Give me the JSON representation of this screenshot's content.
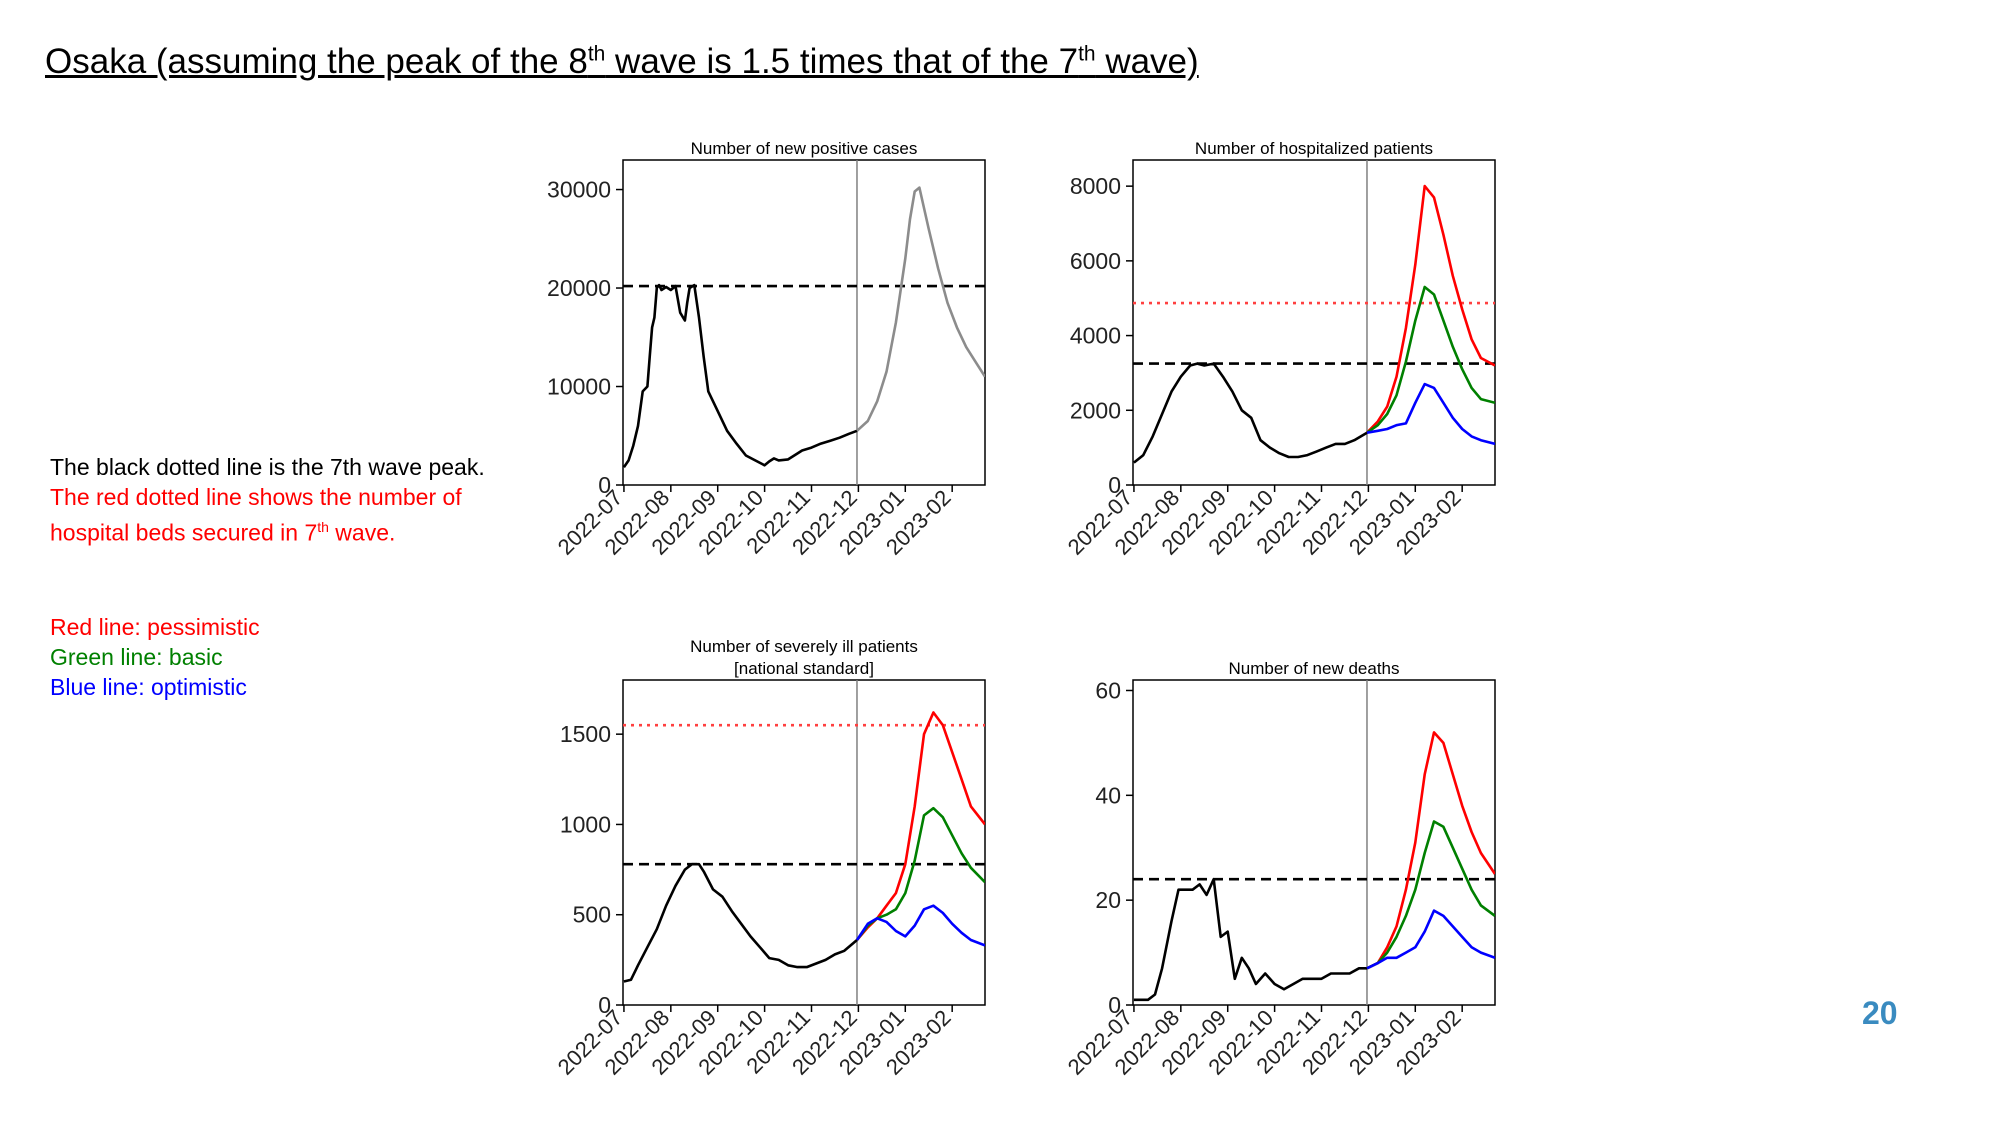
{
  "slide": {
    "title_pre": "Osaka (assuming the peak of the 8",
    "title_sup1": "th",
    "title_mid": " wave is 1.5 times that of the 7",
    "title_sup2": "th",
    "title_post": " wave)",
    "page_number": "20"
  },
  "notes": {
    "black_line": "The black dotted line is the 7th wave peak.",
    "red_line_1": "The red dotted line shows the number of",
    "red_line_2_pre": "hospital beds secured in 7",
    "red_line_2_sup": "th",
    "red_line_2_post": " wave.",
    "legend_red": "Red line: pessimistic",
    "legend_green": "Green line: basic",
    "legend_blue": "Blue line: optimistic"
  },
  "colors": {
    "actual": "#000000",
    "projection": "#8c8c8c",
    "pessimistic": "#ff0000",
    "basic": "#008000",
    "optimistic": "#0000ff",
    "peak_ref": "#000000",
    "beds_ref": "#ff4040",
    "page_number": "#3a8bc0"
  },
  "chart_data": [
    {
      "type": "line",
      "title": [
        "Number of new positive cases"
      ],
      "xticks": [
        "2022-07",
        "2022-08",
        "2022-09",
        "2022-10",
        "2022-11",
        "2022-12",
        "2023-01",
        "2023-02"
      ],
      "xlim": [
        -0.02,
        7.7
      ],
      "ylim": [
        0,
        33000
      ],
      "yticks": [
        0,
        10000,
        20000,
        30000
      ],
      "ylabels": [
        "0",
        "10000",
        "20000",
        "30000"
      ],
      "vline_x": 4.97,
      "hlines": [
        {
          "y": 20200,
          "style": "dashed",
          "color_key": "peak_ref"
        }
      ],
      "series": [
        {
          "color_key": "actual",
          "x": [
            0,
            0.1,
            0.2,
            0.3,
            0.4,
            0.5,
            0.55,
            0.6,
            0.65,
            0.7,
            0.75,
            0.8,
            0.9,
            1.0,
            1.1,
            1.2,
            1.3,
            1.35,
            1.4,
            1.5,
            1.6,
            1.7,
            1.8,
            2.0,
            2.2,
            2.4,
            2.6,
            2.8,
            3.0,
            3.1,
            3.2,
            3.3,
            3.5,
            3.7,
            3.8,
            4.0,
            4.2,
            4.4,
            4.6,
            4.8,
            4.97
          ],
          "y": [
            1800,
            2500,
            4000,
            6000,
            9500,
            10000,
            13000,
            16000,
            17000,
            20000,
            20300,
            19800,
            20100,
            19800,
            20200,
            17500,
            16700,
            18500,
            20000,
            20300,
            17000,
            13000,
            9500,
            7500,
            5500,
            4200,
            3000,
            2500,
            2000,
            2400,
            2700,
            2500,
            2600,
            3200,
            3500,
            3800,
            4200,
            4500,
            4800,
            5200,
            5500
          ]
        },
        {
          "color_key": "projection",
          "x": [
            4.97,
            5.2,
            5.4,
            5.6,
            5.8,
            6.0,
            6.1,
            6.2,
            6.3,
            6.5,
            6.7,
            6.9,
            7.1,
            7.3,
            7.5,
            7.7
          ],
          "y": [
            5500,
            6500,
            8500,
            11500,
            16500,
            23000,
            27000,
            29800,
            30200,
            26000,
            22000,
            18500,
            16000,
            14000,
            12500,
            11000
          ]
        }
      ],
      "value_labels": []
    },
    {
      "type": "line",
      "title": [
        "Number of hospitalized patients"
      ],
      "xticks": [
        "2022-07",
        "2022-08",
        "2022-09",
        "2022-10",
        "2022-11",
        "2022-12",
        "2023-01",
        "2023-02"
      ],
      "xlim": [
        -0.02,
        7.7
      ],
      "ylim": [
        0,
        8700
      ],
      "yticks": [
        0,
        2000,
        4000,
        6000,
        8000
      ],
      "ylabels": [
        "0",
        "2000",
        "4000",
        "6000",
        "8000"
      ],
      "vline_x": 4.97,
      "hlines": [
        {
          "y": 3250,
          "style": "dashed",
          "color_key": "peak_ref"
        },
        {
          "y": 4870,
          "style": "dotted",
          "color_key": "beds_ref"
        }
      ],
      "series": [
        {
          "color_key": "actual",
          "x": [
            0,
            0.2,
            0.4,
            0.6,
            0.8,
            1.0,
            1.2,
            1.35,
            1.5,
            1.7,
            1.9,
            2.1,
            2.3,
            2.5,
            2.7,
            2.9,
            3.1,
            3.3,
            3.5,
            3.7,
            3.9,
            4.1,
            4.3,
            4.5,
            4.7,
            4.97
          ],
          "y": [
            600,
            800,
            1300,
            1900,
            2500,
            2900,
            3200,
            3250,
            3200,
            3250,
            2900,
            2500,
            2000,
            1800,
            1200,
            1000,
            850,
            750,
            750,
            800,
            900,
            1000,
            1100,
            1100,
            1200,
            1400
          ]
        },
        {
          "color_key": "pessimistic",
          "x": [
            4.97,
            5.2,
            5.4,
            5.6,
            5.8,
            6.0,
            6.2,
            6.4,
            6.6,
            6.8,
            7.0,
            7.2,
            7.4,
            7.7
          ],
          "y": [
            1400,
            1700,
            2100,
            2900,
            4200,
            5900,
            8000,
            7700,
            6700,
            5600,
            4700,
            3900,
            3400,
            3200
          ]
        },
        {
          "color_key": "basic",
          "x": [
            4.97,
            5.2,
            5.4,
            5.6,
            5.8,
            6.0,
            6.2,
            6.4,
            6.6,
            6.8,
            7.0,
            7.2,
            7.4,
            7.7
          ],
          "y": [
            1400,
            1600,
            1900,
            2400,
            3300,
            4400,
            5300,
            5100,
            4400,
            3700,
            3100,
            2600,
            2300,
            2200
          ]
        },
        {
          "color_key": "optimistic",
          "x": [
            4.97,
            5.2,
            5.4,
            5.6,
            5.8,
            6.0,
            6.2,
            6.4,
            6.6,
            6.8,
            7.0,
            7.2,
            7.4,
            7.7
          ],
          "y": [
            1400,
            1450,
            1500,
            1600,
            1650,
            2200,
            2700,
            2600,
            2200,
            1800,
            1500,
            1300,
            1200,
            1100
          ]
        }
      ],
      "value_labels": []
    },
    {
      "type": "line",
      "title": [
        "Number of severely ill patients",
        "[national standard]"
      ],
      "xticks": [
        "2022-07",
        "2022-08",
        "2022-09",
        "2022-10",
        "2022-11",
        "2022-12",
        "2023-01",
        "2023-02"
      ],
      "xlim": [
        -0.02,
        7.7
      ],
      "ylim": [
        0,
        1800
      ],
      "yticks": [
        0,
        500,
        1000,
        1500
      ],
      "ylabels": [
        "0",
        "500",
        "1000",
        "1500"
      ],
      "vline_x": 4.97,
      "hlines": [
        {
          "y": 780,
          "style": "dashed",
          "color_key": "peak_ref"
        },
        {
          "y": 1550,
          "style": "dotted",
          "color_key": "beds_ref"
        }
      ],
      "series": [
        {
          "color_key": "actual",
          "x": [
            0,
            0.15,
            0.3,
            0.5,
            0.7,
            0.9,
            1.1,
            1.3,
            1.45,
            1.6,
            1.7,
            1.9,
            2.1,
            2.3,
            2.5,
            2.7,
            2.9,
            3.1,
            3.3,
            3.5,
            3.7,
            3.9,
            4.1,
            4.3,
            4.5,
            4.7,
            4.97
          ],
          "y": [
            130,
            140,
            220,
            320,
            420,
            550,
            660,
            750,
            780,
            780,
            740,
            640,
            600,
            520,
            450,
            380,
            320,
            260,
            250,
            220,
            210,
            210,
            230,
            250,
            280,
            300,
            360
          ]
        },
        {
          "color_key": "pessimistic",
          "x": [
            4.97,
            5.2,
            5.4,
            5.6,
            5.8,
            6.0,
            6.2,
            6.4,
            6.6,
            6.8,
            7.0,
            7.2,
            7.4,
            7.7
          ],
          "y": [
            360,
            430,
            480,
            550,
            620,
            780,
            1100,
            1500,
            1620,
            1550,
            1400,
            1250,
            1100,
            1000
          ]
        },
        {
          "color_key": "basic",
          "x": [
            4.97,
            5.2,
            5.4,
            5.6,
            5.8,
            6.0,
            6.2,
            6.4,
            6.6,
            6.8,
            7.0,
            7.2,
            7.4,
            7.7
          ],
          "y": [
            360,
            440,
            480,
            500,
            530,
            620,
            800,
            1050,
            1090,
            1040,
            940,
            840,
            760,
            680
          ]
        },
        {
          "color_key": "optimistic",
          "x": [
            4.97,
            5.2,
            5.4,
            5.6,
            5.8,
            6.0,
            6.2,
            6.4,
            6.6,
            6.8,
            7.0,
            7.2,
            7.4,
            7.7
          ],
          "y": [
            360,
            450,
            480,
            460,
            410,
            380,
            440,
            530,
            550,
            510,
            450,
            400,
            360,
            330
          ]
        }
      ],
      "value_labels": []
    },
    {
      "type": "line",
      "title": [
        "Number of new deaths"
      ],
      "xticks": [
        "2022-07",
        "2022-08",
        "2022-09",
        "2022-10",
        "2022-11",
        "2022-12",
        "2023-01",
        "2023-02"
      ],
      "xlim": [
        -0.02,
        7.7
      ],
      "ylim": [
        0,
        62
      ],
      "yticks": [
        0,
        20,
        40,
        60
      ],
      "ylabels": [
        "0",
        "20",
        "40",
        "60"
      ],
      "vline_x": 4.97,
      "hlines": [
        {
          "y": 24,
          "style": "dashed",
          "color_key": "peak_ref"
        }
      ],
      "series": [
        {
          "color_key": "actual",
          "x": [
            0,
            0.15,
            0.3,
            0.45,
            0.6,
            0.8,
            0.95,
            1.1,
            1.25,
            1.4,
            1.55,
            1.7,
            1.85,
            2.0,
            2.15,
            2.3,
            2.45,
            2.6,
            2.8,
            3.0,
            3.2,
            3.4,
            3.6,
            3.8,
            4.0,
            4.2,
            4.4,
            4.6,
            4.8,
            4.97
          ],
          "y": [
            1,
            1,
            1,
            2,
            7,
            16,
            22,
            22,
            22,
            23,
            21,
            24,
            13,
            14,
            5,
            9,
            7,
            4,
            6,
            4,
            3,
            4,
            5,
            5,
            5,
            6,
            6,
            6,
            7,
            7
          ]
        },
        {
          "color_key": "pessimistic",
          "x": [
            4.97,
            5.2,
            5.4,
            5.6,
            5.8,
            6.0,
            6.2,
            6.4,
            6.6,
            6.8,
            7.0,
            7.2,
            7.4,
            7.7
          ],
          "y": [
            7,
            8,
            11,
            15,
            22,
            31,
            44,
            52,
            50,
            44,
            38,
            33,
            29,
            25
          ]
        },
        {
          "color_key": "basic",
          "x": [
            4.97,
            5.2,
            5.4,
            5.6,
            5.8,
            6.0,
            6.2,
            6.4,
            6.6,
            6.8,
            7.0,
            7.2,
            7.4,
            7.7
          ],
          "y": [
            7,
            8,
            10,
            13,
            17,
            22,
            29,
            35,
            34,
            30,
            26,
            22,
            19,
            17
          ]
        },
        {
          "color_key": "optimistic",
          "x": [
            4.97,
            5.2,
            5.4,
            5.6,
            5.8,
            6.0,
            6.2,
            6.4,
            6.6,
            6.8,
            7.0,
            7.2,
            7.4,
            7.7
          ],
          "y": [
            7,
            8,
            9,
            9,
            10,
            11,
            14,
            18,
            17,
            15,
            13,
            11,
            10,
            9
          ]
        }
      ],
      "value_labels": []
    }
  ]
}
